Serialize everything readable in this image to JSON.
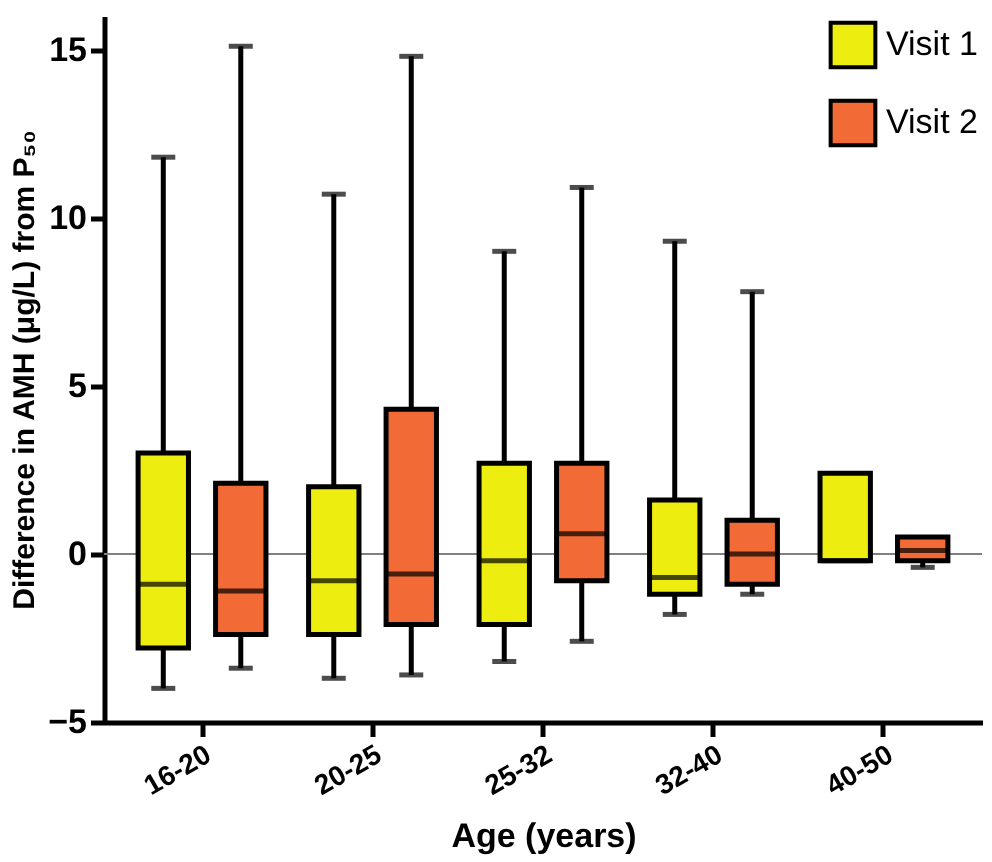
{
  "chart_data": {
    "type": "box",
    "xlabel": "Age (years)",
    "ylabel": "Difference in AMH (μg/L) from P₅₀",
    "categories": [
      "16-20",
      "20-25",
      "25-32",
      "32-40",
      "40-50"
    ],
    "ylim": [
      -5,
      16
    ],
    "yticks": [
      -5,
      0,
      5,
      10,
      15
    ],
    "grid": false,
    "legend": "top right",
    "ref_lines": [
      {
        "axis": "y",
        "value": 0,
        "color": "#808080"
      }
    ],
    "series": [
      {
        "name": "Visit 1",
        "color": "#eded10",
        "boxes": [
          {
            "low": -4.0,
            "q1": -2.8,
            "median": -0.9,
            "q3": 3.0,
            "high": 11.8
          },
          {
            "low": -3.7,
            "q1": -2.4,
            "median": -0.8,
            "q3": 2.0,
            "high": 10.7
          },
          {
            "low": -3.2,
            "q1": -2.1,
            "median": -0.2,
            "q3": 2.7,
            "high": 9.0
          },
          {
            "low": -1.8,
            "q1": -1.2,
            "median": -0.7,
            "q3": 1.6,
            "high": 9.3
          },
          {
            "low": -0.2,
            "q1": -0.2,
            "median": -0.2,
            "q3": 2.4,
            "high": 2.4
          }
        ]
      },
      {
        "name": "Visit 2",
        "color": "#f26a35",
        "boxes": [
          {
            "low": -3.4,
            "q1": -2.4,
            "median": -1.1,
            "q3": 2.1,
            "high": 15.1
          },
          {
            "low": -3.6,
            "q1": -2.1,
            "median": -0.6,
            "q3": 4.3,
            "high": 14.8
          },
          {
            "low": -2.6,
            "q1": -0.8,
            "median": 0.6,
            "q3": 2.7,
            "high": 10.9
          },
          {
            "low": -1.2,
            "q1": -0.9,
            "median": 0.0,
            "q3": 1.0,
            "high": 7.8
          },
          {
            "low": -0.4,
            "q1": -0.2,
            "median": 0.1,
            "q3": 0.5,
            "high": 0.5
          }
        ]
      }
    ]
  }
}
